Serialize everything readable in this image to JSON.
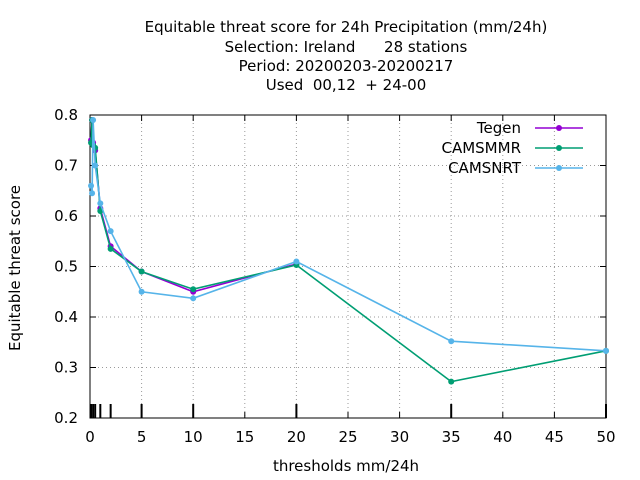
{
  "chart_data": {
    "type": "line",
    "title_lines": [
      "Equitable threat score  for 24h Precipitation (mm/24h)",
      "Selection: Ireland      28 stations",
      "Period: 20200203-20200217",
      "Used  00,12  + 24-00"
    ],
    "xlabel": "thresholds mm/24h",
    "ylabel": "Equitable threat score",
    "xlim": [
      0,
      50
    ],
    "ylim": [
      0.2,
      0.8
    ],
    "xticks": [
      0,
      5,
      10,
      15,
      20,
      25,
      30,
      35,
      40,
      45,
      50
    ],
    "yticks": [
      0.2,
      0.3,
      0.4,
      0.5,
      0.6,
      0.7,
      0.8
    ],
    "grid": true,
    "legend_position": "top-right",
    "threshold_marks": [
      0.1,
      0.3,
      0.5,
      1,
      2,
      5,
      10,
      20,
      35,
      50
    ],
    "series": [
      {
        "name": "Tegen",
        "color": "#9400d3",
        "x": [
          0.1,
          0.2,
          0.3,
          0.5,
          1,
          2,
          5,
          10,
          20
        ],
        "y": [
          0.75,
          0.79,
          0.745,
          0.73,
          0.615,
          0.54,
          0.49,
          0.45,
          0.505
        ]
      },
      {
        "name": "CAMSMMR",
        "color": "#009e73",
        "x": [
          0.1,
          0.2,
          0.3,
          0.5,
          1,
          2,
          5,
          10,
          20,
          35,
          50
        ],
        "y": [
          0.745,
          0.79,
          0.74,
          0.735,
          0.61,
          0.535,
          0.49,
          0.455,
          0.503,
          0.272,
          0.333
        ]
      },
      {
        "name": "CAMSNRT",
        "color": "#56b4e9",
        "x": [
          0.1,
          0.2,
          0.3,
          0.5,
          1,
          2,
          5,
          10,
          20,
          35,
          50
        ],
        "y": [
          0.66,
          0.645,
          0.79,
          0.7,
          0.625,
          0.57,
          0.45,
          0.437,
          0.51,
          0.352,
          0.333
        ]
      }
    ]
  }
}
